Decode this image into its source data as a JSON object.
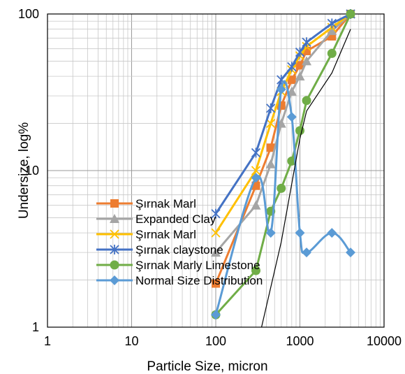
{
  "chart_data": {
    "type": "line",
    "xscale": "log",
    "yscale": "log",
    "xlim": [
      1,
      10000
    ],
    "ylim": [
      1,
      100
    ],
    "grid": true,
    "xlabel": "Particle Size, micron",
    "ylabel": "Undersize, log%",
    "x_ticks": [
      "1",
      "10",
      "100",
      "1000",
      "10000"
    ],
    "y_ticks": [
      "1",
      "10",
      "100"
    ],
    "legend_position": "lower-left, inside plot",
    "series": [
      {
        "name": "Şırnak Marl",
        "color": "#ED7D31",
        "marker": "square",
        "points": [
          [
            100,
            1.9
          ],
          [
            300,
            8
          ],
          [
            450,
            14
          ],
          [
            600,
            26
          ],
          [
            800,
            38
          ],
          [
            1000,
            47
          ],
          [
            1200,
            58
          ],
          [
            2400,
            72
          ],
          [
            4000,
            100
          ]
        ]
      },
      {
        "name": "Expanded Clay",
        "color": "#A5A5A5",
        "marker": "triangle",
        "points": [
          [
            100,
            3
          ],
          [
            300,
            6
          ],
          [
            450,
            11
          ],
          [
            600,
            20
          ],
          [
            800,
            32
          ],
          [
            1000,
            40
          ],
          [
            1200,
            50
          ],
          [
            2400,
            78
          ],
          [
            4000,
            100
          ]
        ]
      },
      {
        "name": "Şırnak Marl",
        "color": "#FFC000",
        "marker": "x",
        "points": [
          [
            100,
            4
          ],
          [
            300,
            10
          ],
          [
            450,
            20
          ],
          [
            600,
            32
          ],
          [
            800,
            44
          ],
          [
            1000,
            54
          ],
          [
            1200,
            62
          ],
          [
            2400,
            82
          ],
          [
            4000,
            100
          ]
        ]
      },
      {
        "name": "Şırnak claystone",
        "color": "#4472C4",
        "marker": "star",
        "points": [
          [
            100,
            5.3
          ],
          [
            300,
            13
          ],
          [
            450,
            25
          ],
          [
            600,
            38
          ],
          [
            800,
            46
          ],
          [
            1000,
            57
          ],
          [
            1200,
            66
          ],
          [
            2400,
            87
          ],
          [
            4000,
            100
          ]
        ]
      },
      {
        "name": "Şırnak Marly Limestone",
        "color": "#70AD47",
        "marker": "circle",
        "points": [
          [
            100,
            1.2
          ],
          [
            300,
            2.3
          ],
          [
            450,
            5.5
          ],
          [
            600,
            7.7
          ],
          [
            800,
            11.5
          ],
          [
            1000,
            18
          ],
          [
            1200,
            28
          ],
          [
            2400,
            56
          ],
          [
            4000,
            100
          ]
        ]
      },
      {
        "name": "Normal Size Distribution",
        "color": "#5B9BD5",
        "marker": "diamond",
        "smooth": true,
        "points": [
          [
            100,
            1.2
          ],
          [
            300,
            9
          ],
          [
            450,
            4
          ],
          [
            600,
            33
          ],
          [
            800,
            22
          ],
          [
            1000,
            4
          ],
          [
            1200,
            3
          ],
          [
            2400,
            4
          ],
          [
            4000,
            3
          ]
        ]
      },
      {
        "name": "",
        "color": "#000000",
        "marker": "none",
        "points": [
          [
            350,
            1
          ],
          [
            600,
            3.5
          ],
          [
            1000,
            16
          ],
          [
            1200,
            24
          ],
          [
            2400,
            42
          ],
          [
            4000,
            80
          ]
        ]
      }
    ]
  }
}
